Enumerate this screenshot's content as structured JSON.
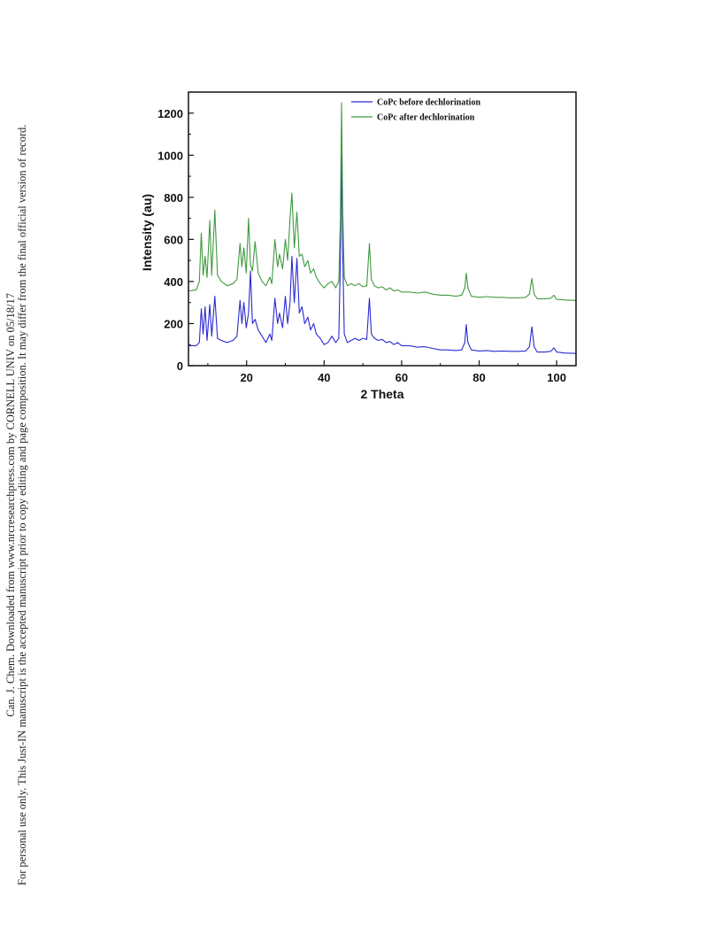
{
  "side_note": {
    "line1": "Can. J. Chem. Downloaded from www.nrcresearchpress.com by CORNELL UNIV on 05/18/17",
    "line2": "For personal use only. This Just-IN manuscript is the accepted manuscript prior to copy editing and page composition. It may differ from the final official version of record."
  },
  "chart_data": {
    "type": "line",
    "title": "",
    "xlabel": "2 Theta",
    "ylabel": "Intensity (au)",
    "xlim": [
      5,
      105
    ],
    "ylim": [
      0,
      1300
    ],
    "x_ticks": [
      20,
      40,
      60,
      80,
      100
    ],
    "y_ticks": [
      0,
      200,
      400,
      600,
      800,
      1000,
      1200
    ],
    "grid": false,
    "legend_position": "top-right",
    "series": [
      {
        "name": "CoPc before dechlorination",
        "color": "#2a2ad0",
        "baseline_note_hidden": true,
        "points": [
          [
            5,
            95
          ],
          [
            7,
            95
          ],
          [
            7.8,
            110
          ],
          [
            8.3,
            270
          ],
          [
            8.8,
            150
          ],
          [
            9.3,
            280
          ],
          [
            9.8,
            120
          ],
          [
            10.5,
            290
          ],
          [
            11.0,
            140
          ],
          [
            11.8,
            330
          ],
          [
            12.5,
            130
          ],
          [
            13.5,
            120
          ],
          [
            15,
            110
          ],
          [
            16.5,
            120
          ],
          [
            17.5,
            140
          ],
          [
            18.3,
            310
          ],
          [
            18.8,
            200
          ],
          [
            19.3,
            300
          ],
          [
            19.9,
            180
          ],
          [
            20.5,
            250
          ],
          [
            21.0,
            450
          ],
          [
            21.5,
            200
          ],
          [
            22.2,
            220
          ],
          [
            23,
            170
          ],
          [
            24,
            140
          ],
          [
            25,
            110
          ],
          [
            26,
            150
          ],
          [
            26.5,
            120
          ],
          [
            27.3,
            320
          ],
          [
            28,
            200
          ],
          [
            28.5,
            250
          ],
          [
            29.3,
            180
          ],
          [
            30.0,
            330
          ],
          [
            30.6,
            200
          ],
          [
            31.2,
            300
          ],
          [
            31.7,
            520
          ],
          [
            32.3,
            300
          ],
          [
            33.0,
            510
          ],
          [
            33.6,
            250
          ],
          [
            34.3,
            280
          ],
          [
            35.0,
            200
          ],
          [
            35.8,
            230
          ],
          [
            36.5,
            170
          ],
          [
            37.3,
            200
          ],
          [
            38.0,
            150
          ],
          [
            39,
            130
          ],
          [
            40,
            100
          ],
          [
            41,
            110
          ],
          [
            42,
            140
          ],
          [
            43,
            110
          ],
          [
            43.8,
            130
          ],
          [
            44.2,
            500
          ],
          [
            44.5,
            1000
          ],
          [
            44.8,
            550
          ],
          [
            45.2,
            150
          ],
          [
            46,
            110
          ],
          [
            47,
            120
          ],
          [
            48,
            130
          ],
          [
            49,
            120
          ],
          [
            50,
            130
          ],
          [
            51,
            125
          ],
          [
            51.7,
            320
          ],
          [
            52.2,
            150
          ],
          [
            53,
            130
          ],
          [
            54,
            120
          ],
          [
            55,
            125
          ],
          [
            56,
            110
          ],
          [
            57,
            115
          ],
          [
            58,
            100
          ],
          [
            59,
            110
          ],
          [
            60,
            95
          ],
          [
            62,
            95
          ],
          [
            64,
            88
          ],
          [
            66,
            90
          ],
          [
            68,
            82
          ],
          [
            70,
            75
          ],
          [
            72,
            75
          ],
          [
            74,
            72
          ],
          [
            75.5,
            75
          ],
          [
            76.3,
            110
          ],
          [
            76.7,
            195
          ],
          [
            77.1,
            110
          ],
          [
            78,
            75
          ],
          [
            80,
            70
          ],
          [
            82,
            72
          ],
          [
            84,
            68
          ],
          [
            86,
            70
          ],
          [
            88,
            68
          ],
          [
            90,
            68
          ],
          [
            92,
            70
          ],
          [
            93.0,
            90
          ],
          [
            93.6,
            185
          ],
          [
            94.2,
            90
          ],
          [
            95,
            65
          ],
          [
            97,
            65
          ],
          [
            98.5,
            68
          ],
          [
            99.3,
            85
          ],
          [
            100,
            65
          ],
          [
            102,
            60
          ],
          [
            105,
            58
          ]
        ]
      },
      {
        "name": "CoPc after dechlorination",
        "color": "#3f9a3f",
        "points": [
          [
            5,
            355
          ],
          [
            7,
            360
          ],
          [
            7.8,
            400
          ],
          [
            8.3,
            630
          ],
          [
            8.8,
            430
          ],
          [
            9.3,
            520
          ],
          [
            9.8,
            420
          ],
          [
            10.5,
            690
          ],
          [
            11.0,
            430
          ],
          [
            11.8,
            740
          ],
          [
            12.5,
            430
          ],
          [
            13.5,
            400
          ],
          [
            15,
            380
          ],
          [
            16.5,
            390
          ],
          [
            17.5,
            410
          ],
          [
            18.3,
            580
          ],
          [
            18.8,
            470
          ],
          [
            19.3,
            560
          ],
          [
            19.9,
            440
          ],
          [
            20.5,
            700
          ],
          [
            21.0,
            480
          ],
          [
            21.5,
            450
          ],
          [
            22.2,
            590
          ],
          [
            23,
            440
          ],
          [
            24,
            400
          ],
          [
            25,
            380
          ],
          [
            26,
            420
          ],
          [
            26.5,
            390
          ],
          [
            27.3,
            600
          ],
          [
            28,
            470
          ],
          [
            28.5,
            530
          ],
          [
            29.3,
            460
          ],
          [
            30.0,
            600
          ],
          [
            30.6,
            500
          ],
          [
            31.2,
            700
          ],
          [
            31.7,
            820
          ],
          [
            32.3,
            560
          ],
          [
            33.0,
            730
          ],
          [
            33.6,
            520
          ],
          [
            34.3,
            530
          ],
          [
            35.0,
            470
          ],
          [
            35.8,
            500
          ],
          [
            36.5,
            440
          ],
          [
            37.3,
            460
          ],
          [
            38.0,
            420
          ],
          [
            39,
            390
          ],
          [
            40,
            370
          ],
          [
            41,
            390
          ],
          [
            42,
            400
          ],
          [
            43,
            370
          ],
          [
            43.8,
            400
          ],
          [
            44.2,
            700
          ],
          [
            44.5,
            1250
          ],
          [
            44.8,
            750
          ],
          [
            45.2,
            420
          ],
          [
            46,
            380
          ],
          [
            47,
            390
          ],
          [
            48,
            380
          ],
          [
            49,
            390
          ],
          [
            50,
            375
          ],
          [
            51,
            380
          ],
          [
            51.7,
            580
          ],
          [
            52.2,
            410
          ],
          [
            53,
            380
          ],
          [
            54,
            370
          ],
          [
            55,
            375
          ],
          [
            56,
            360
          ],
          [
            57,
            370
          ],
          [
            58,
            355
          ],
          [
            59,
            360
          ],
          [
            60,
            350
          ],
          [
            62,
            350
          ],
          [
            64,
            345
          ],
          [
            66,
            350
          ],
          [
            68,
            340
          ],
          [
            70,
            335
          ],
          [
            72,
            335
          ],
          [
            74,
            330
          ],
          [
            75.5,
            335
          ],
          [
            76.3,
            370
          ],
          [
            76.7,
            440
          ],
          [
            77.1,
            370
          ],
          [
            78,
            330
          ],
          [
            80,
            325
          ],
          [
            82,
            328
          ],
          [
            84,
            325
          ],
          [
            86,
            325
          ],
          [
            88,
            322
          ],
          [
            90,
            322
          ],
          [
            92,
            325
          ],
          [
            93.0,
            340
          ],
          [
            93.6,
            415
          ],
          [
            94.2,
            340
          ],
          [
            95,
            318
          ],
          [
            97,
            318
          ],
          [
            98.5,
            320
          ],
          [
            99.3,
            335
          ],
          [
            100,
            315
          ],
          [
            102,
            312
          ],
          [
            105,
            310
          ]
        ]
      }
    ]
  }
}
